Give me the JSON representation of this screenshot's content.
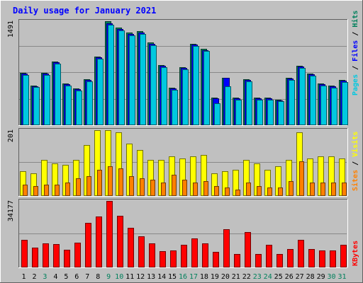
{
  "title": "Daily usage for January 2021",
  "colors": {
    "background": "#c0c0c0",
    "title": "#0000ff",
    "hits": "#00805c",
    "files": "#0000ff",
    "pages": "#00c8e0",
    "visits": "#ffff00",
    "sites": "#ff8000",
    "kbytes": "#ff0000",
    "day_normal": "#000000",
    "day_weekend": "#00805c"
  },
  "days": [
    "1",
    "2",
    "3",
    "4",
    "5",
    "6",
    "7",
    "8",
    "9",
    "10",
    "11",
    "12",
    "13",
    "14",
    "15",
    "16",
    "17",
    "18",
    "19",
    "20",
    "21",
    "22",
    "23",
    "24",
    "25",
    "26",
    "27",
    "28",
    "29",
    "30",
    "31"
  ],
  "weekend_days": [
    "3",
    "9",
    "10",
    "16",
    "17",
    "23",
    "24",
    "30",
    "31"
  ],
  "chart_data": [
    {
      "type": "bar",
      "axis_max_label": "1491",
      "ylim": [
        0,
        1491
      ],
      "legend": [
        "Pages",
        "Files",
        "Hits"
      ],
      "series": [
        {
          "name": "Hits",
          "values": [
            750,
            570,
            755,
            915,
            595,
            530,
            655,
            980,
            1491,
            1400,
            1325,
            1350,
            1185,
            860,
            540,
            835,
            1165,
            1095,
            400,
            680,
            400,
            660,
            395,
            395,
            370,
            675,
            855,
            740,
            595,
            565,
            645
          ]
        },
        {
          "name": "Files",
          "values": [
            740,
            560,
            745,
            900,
            585,
            520,
            645,
            970,
            1460,
            1380,
            1305,
            1330,
            1170,
            850,
            530,
            825,
            1155,
            1080,
            390,
            680,
            390,
            650,
            385,
            385,
            360,
            665,
            845,
            730,
            585,
            555,
            635
          ]
        },
        {
          "name": "Pages",
          "values": [
            720,
            545,
            725,
            880,
            565,
            500,
            625,
            950,
            1440,
            1360,
            1285,
            1310,
            1150,
            830,
            510,
            805,
            1135,
            1060,
            310,
            560,
            370,
            630,
            365,
            365,
            340,
            645,
            825,
            710,
            565,
            535,
            615
          ]
        }
      ]
    },
    {
      "type": "bar",
      "axis_max_label": "201",
      "ylim": [
        0,
        201
      ],
      "legend": [
        "Sites",
        "Visits"
      ],
      "series": [
        {
          "name": "Visits",
          "values": [
            75,
            70,
            110,
            100,
            95,
            110,
            155,
            201,
            201,
            195,
            160,
            140,
            110,
            110,
            120,
            115,
            120,
            125,
            70,
            75,
            80,
            110,
            100,
            80,
            90,
            110,
            195,
            115,
            120,
            120,
            115
          ]
        },
        {
          "name": "Sites",
          "values": [
            35,
            30,
            35,
            35,
            40,
            55,
            60,
            80,
            90,
            85,
            60,
            55,
            50,
            40,
            65,
            50,
            40,
            45,
            30,
            25,
            20,
            40,
            30,
            25,
            25,
            45,
            105,
            40,
            40,
            40,
            40
          ]
        }
      ]
    },
    {
      "type": "bar",
      "axis_max_label": "34177",
      "ylim": [
        0,
        34177
      ],
      "legend": [
        "KBytes"
      ],
      "series": [
        {
          "name": "KBytes",
          "values": [
            14000,
            10000,
            12400,
            12000,
            9200,
            12800,
            22800,
            26000,
            34177,
            26500,
            20400,
            16000,
            12200,
            8200,
            8600,
            11500,
            14800,
            12400,
            8000,
            19800,
            6800,
            18000,
            6800,
            11800,
            6800,
            9300,
            14200,
            9300,
            8600,
            8600,
            11800
          ]
        }
      ]
    }
  ]
}
